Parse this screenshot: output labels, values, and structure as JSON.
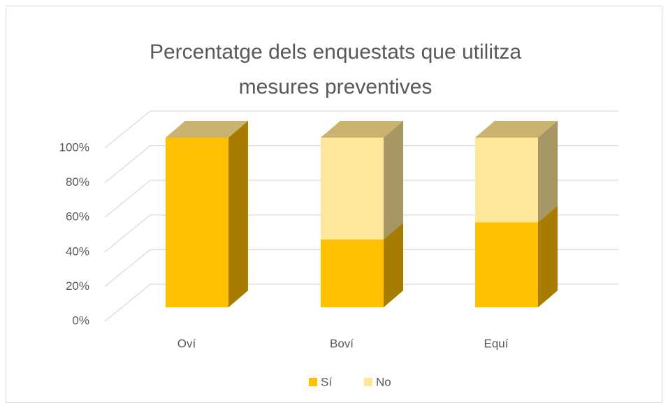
{
  "chart_data": {
    "type": "bar3d_stacked",
    "title": "Percentatge dels enquestats que utilitza mesures preventives",
    "categories": [
      "Oví",
      "Boví",
      "Equí"
    ],
    "series": [
      {
        "name": "Sí",
        "color": "#ffc000",
        "values": [
          100,
          40,
          50
        ]
      },
      {
        "name": "No",
        "color": "#ffe699",
        "values": [
          0,
          60,
          50
        ]
      }
    ],
    "ylim": [
      0,
      100
    ],
    "yticks": [
      {
        "value": 0,
        "label": "0%"
      },
      {
        "value": 20,
        "label": "20%"
      },
      {
        "value": 40,
        "label": "40%"
      },
      {
        "value": 60,
        "label": "60%"
      },
      {
        "value": 80,
        "label": "80%"
      },
      {
        "value": 100,
        "label": "100%"
      }
    ],
    "grid": true,
    "legend": "bottom"
  }
}
